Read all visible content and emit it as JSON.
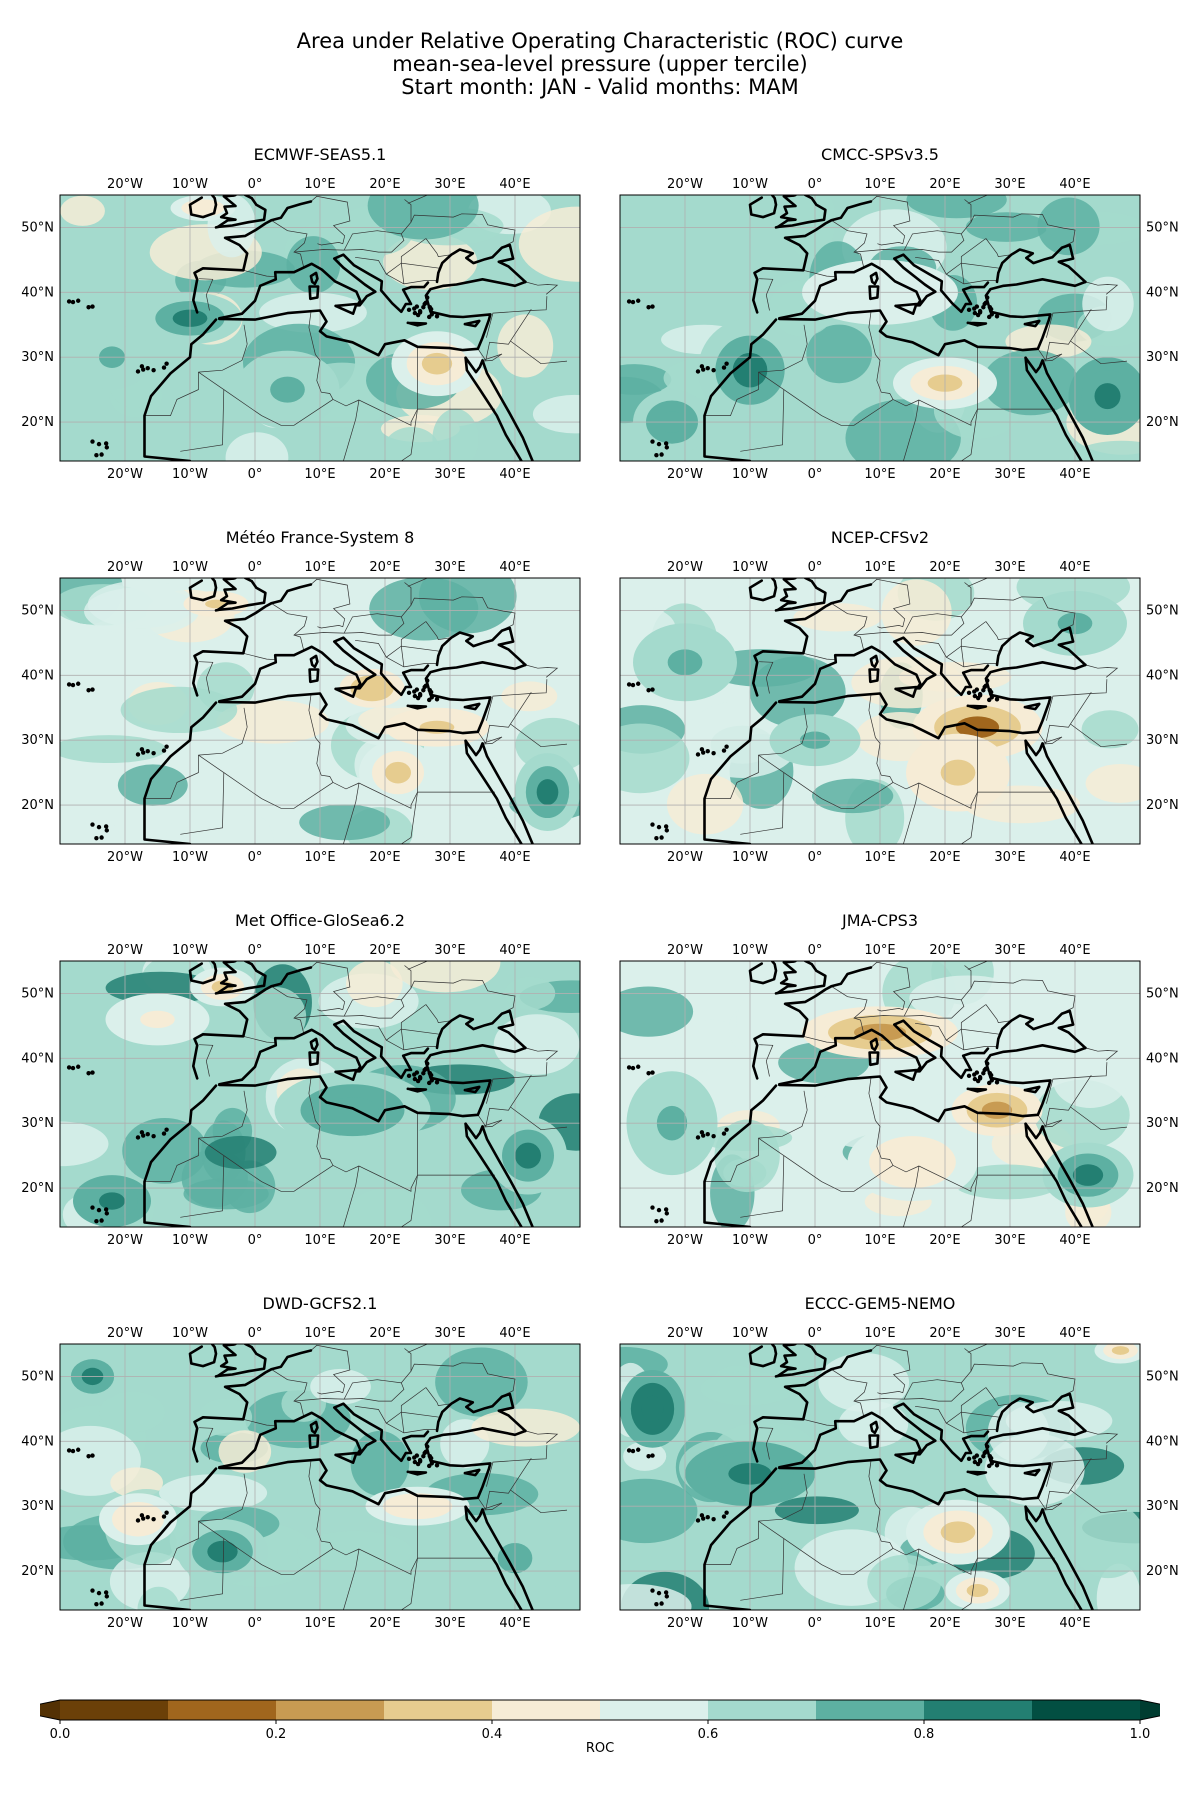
{
  "figure": {
    "title_lines": [
      "Area under Relative Operating Characteristic (ROC) curve",
      "mean-sea-level pressure (upper tercile)",
      "Start month: JAN - Valid months: MAM"
    ]
  },
  "map_extent": {
    "lon": [
      -30,
      50
    ],
    "lat": [
      14,
      55
    ]
  },
  "lon_ticks": [
    {
      "value": -20,
      "label": "20°W"
    },
    {
      "value": -10,
      "label": "10°W"
    },
    {
      "value": 0,
      "label": "0°"
    },
    {
      "value": 10,
      "label": "10°E"
    },
    {
      "value": 20,
      "label": "20°E"
    },
    {
      "value": 30,
      "label": "30°E"
    },
    {
      "value": 40,
      "label": "40°E"
    }
  ],
  "lat_ticks": [
    {
      "value": 50,
      "label": "50°N"
    },
    {
      "value": 40,
      "label": "40°N"
    },
    {
      "value": 30,
      "label": "30°N"
    },
    {
      "value": 20,
      "label": "20°N"
    }
  ],
  "panels": [
    {
      "title": "ECMWF-SEAS5.1",
      "lat_labels": "left",
      "base": 0.6,
      "anomalies": [
        {
          "lon": 28,
          "lat": 29,
          "rx": 7,
          "ry": 5,
          "value": 0.32
        },
        {
          "lon": -8,
          "lat": 53,
          "rx": 5,
          "ry": 2,
          "value": 0.42
        },
        {
          "lon": -10,
          "lat": 36,
          "rx": 8,
          "ry": 4,
          "value": 0.82
        },
        {
          "lon": -22,
          "lat": 30,
          "rx": 6,
          "ry": 5,
          "value": 0.74
        },
        {
          "lon": 5,
          "lat": 25,
          "rx": 8,
          "ry": 6,
          "value": 0.7
        }
      ]
    },
    {
      "title": "CMCC-SPSv3.5",
      "lat_labels": "right",
      "base": 0.62,
      "anomalies": [
        {
          "lon": 20,
          "lat": 26,
          "rx": 8,
          "ry": 4,
          "value": 0.34
        },
        {
          "lon": 45,
          "lat": 24,
          "rx": 6,
          "ry": 6,
          "value": 0.86
        },
        {
          "lon": -10,
          "lat": 28,
          "rx": 8,
          "ry": 8,
          "value": 0.8
        },
        {
          "lon": -22,
          "lat": 20,
          "rx": 6,
          "ry": 5,
          "value": 0.78
        },
        {
          "lon": 10,
          "lat": 40,
          "rx": 12,
          "ry": 5,
          "value": 0.55
        }
      ]
    },
    {
      "title": "Météo France-System 8",
      "lat_labels": "left",
      "base": 0.58,
      "anomalies": [
        {
          "lon": 22,
          "lat": 25,
          "rx": 6,
          "ry": 5,
          "value": 0.35
        },
        {
          "lon": 28,
          "lat": 32,
          "rx": 8,
          "ry": 3,
          "value": 0.33
        },
        {
          "lon": -6,
          "lat": 51,
          "rx": 5,
          "ry": 2,
          "value": 0.32
        },
        {
          "lon": 18,
          "lat": 38,
          "rx": 5,
          "ry": 3,
          "value": 0.3
        },
        {
          "lon": 45,
          "lat": 22,
          "rx": 5,
          "ry": 6,
          "value": 0.82
        }
      ]
    },
    {
      "title": "NCEP-CFSv2",
      "lat_labels": "right",
      "base": 0.56,
      "anomalies": [
        {
          "lon": 25,
          "lat": 32,
          "rx": 10,
          "ry": 5,
          "value": 0.18
        },
        {
          "lon": 22,
          "lat": 25,
          "rx": 8,
          "ry": 6,
          "value": 0.32
        },
        {
          "lon": -20,
          "lat": 42,
          "rx": 8,
          "ry": 6,
          "value": 0.76
        },
        {
          "lon": 40,
          "lat": 48,
          "rx": 8,
          "ry": 5,
          "value": 0.72
        },
        {
          "lon": 0,
          "lat": 30,
          "rx": 7,
          "ry": 4,
          "value": 0.7
        }
      ]
    },
    {
      "title": "Met Office-GloSea6.2",
      "lat_labels": "left",
      "base": 0.64,
      "anomalies": [
        {
          "lon": -5,
          "lat": 51,
          "rx": 5,
          "ry": 3,
          "value": 0.3
        },
        {
          "lon": 15,
          "lat": 32,
          "rx": 12,
          "ry": 6,
          "value": 0.78
        },
        {
          "lon": -22,
          "lat": 18,
          "rx": 6,
          "ry": 4,
          "value": 0.84
        },
        {
          "lon": 42,
          "lat": 25,
          "rx": 6,
          "ry": 6,
          "value": 0.8
        },
        {
          "lon": -15,
          "lat": 46,
          "rx": 8,
          "ry": 4,
          "value": 0.45
        }
      ]
    },
    {
      "title": "JMA-CPS3",
      "lat_labels": "right",
      "base": 0.56,
      "anomalies": [
        {
          "lon": 10,
          "lat": 44,
          "rx": 12,
          "ry": 4,
          "value": 0.28
        },
        {
          "lon": 28,
          "lat": 32,
          "rx": 7,
          "ry": 4,
          "value": 0.26
        },
        {
          "lon": 15,
          "lat": 24,
          "rx": 10,
          "ry": 6,
          "value": 0.45
        },
        {
          "lon": -22,
          "lat": 30,
          "rx": 7,
          "ry": 8,
          "value": 0.76
        },
        {
          "lon": 42,
          "lat": 22,
          "rx": 7,
          "ry": 5,
          "value": 0.82
        }
      ]
    },
    {
      "title": "DWD-GCFS2.1",
      "lat_labels": "left",
      "base": 0.6,
      "anomalies": [
        {
          "lon": -25,
          "lat": 50,
          "rx": 5,
          "ry": 4,
          "value": 0.84
        },
        {
          "lon": -5,
          "lat": 23,
          "rx": 7,
          "ry": 5,
          "value": 0.82
        },
        {
          "lon": 25,
          "lat": 30,
          "rx": 8,
          "ry": 3,
          "value": 0.4
        },
        {
          "lon": -18,
          "lat": 28,
          "rx": 6,
          "ry": 4,
          "value": 0.4
        },
        {
          "lon": 40,
          "lat": 22,
          "rx": 8,
          "ry": 7,
          "value": 0.74
        }
      ]
    },
    {
      "title": "ECCC-GEM5-NEMO",
      "lat_labels": "right",
      "base": 0.66,
      "anomalies": [
        {
          "lon": -25,
          "lat": 45,
          "rx": 5,
          "ry": 6,
          "value": 0.88
        },
        {
          "lon": 47,
          "lat": 54,
          "rx": 4,
          "ry": 2,
          "value": 0.3
        },
        {
          "lon": 22,
          "lat": 26,
          "rx": 8,
          "ry": 5,
          "value": 0.38
        },
        {
          "lon": 25,
          "lat": 17,
          "rx": 5,
          "ry": 3,
          "value": 0.32
        },
        {
          "lon": -10,
          "lat": 35,
          "rx": 10,
          "ry": 5,
          "value": 0.8
        }
      ]
    }
  ],
  "colorbar": {
    "label": "ROC",
    "levels": [
      0.0,
      0.1,
      0.2,
      0.3,
      0.4,
      0.5,
      0.6,
      0.7,
      0.8,
      0.9,
      1.0
    ],
    "tick_labels": [
      {
        "value": 0.0,
        "label": "0.0"
      },
      {
        "value": 0.2,
        "label": "0.2"
      },
      {
        "value": 0.4,
        "label": "0.4"
      },
      {
        "value": 0.6,
        "label": "0.6"
      },
      {
        "value": 0.8,
        "label": "0.8"
      },
      {
        "value": 1.0,
        "label": "1.0"
      }
    ],
    "colors": [
      "#6b4008",
      "#a0661d",
      "#c89b52",
      "#e6cc8f",
      "#f6ecd6",
      "#dbf0eb",
      "#a4dacd",
      "#5db0a2",
      "#237f72",
      "#024f42"
    ],
    "under_color": "#533104",
    "over_color": "#003c30"
  },
  "map_style": {
    "grid_color": "#b0b0b0",
    "coast_color": "#000000",
    "border_color": "#333333"
  }
}
